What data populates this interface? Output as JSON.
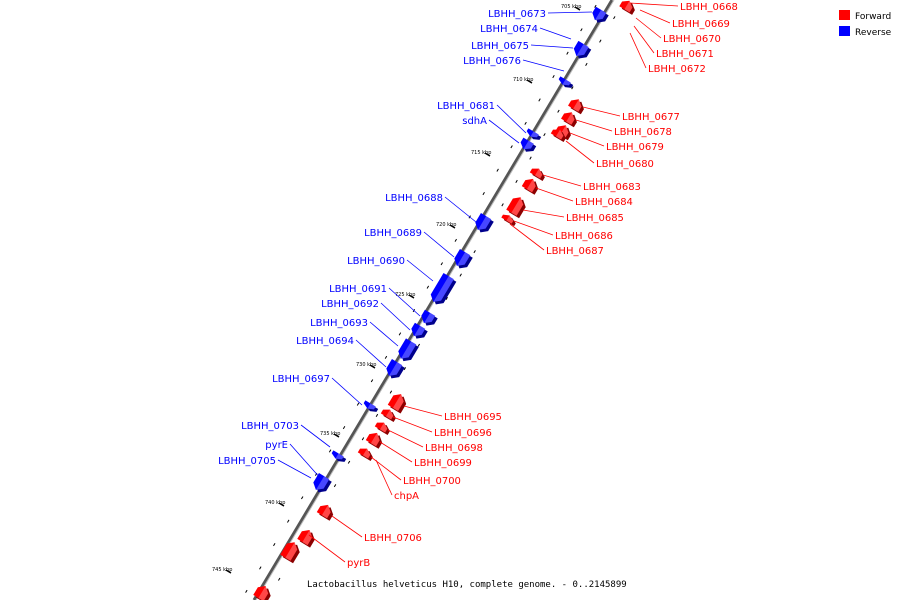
{
  "caption": "Lactobacillus helveticus H10, complete genome. - 0..2145899",
  "legend": {
    "forward": {
      "label": "Forward",
      "color": "#ff0000"
    },
    "reverse": {
      "label": "Reverse",
      "color": "#0000ff"
    }
  },
  "ticks": [
    "705 kbp",
    "710 kbp",
    "715 kbp",
    "720 kbp",
    "725 kbp",
    "730 kbp",
    "735 kbp",
    "740 kbp",
    "745 kbp"
  ],
  "genes": {
    "forward": [
      "LBHH_0668",
      "LBHH_0669",
      "LBHH_0670",
      "LBHH_0671",
      "LBHH_0672",
      "LBHH_0677",
      "LBHH_0678",
      "LBHH_0679",
      "LBHH_0680",
      "LBHH_0683",
      "LBHH_0684",
      "LBHH_0685",
      "LBHH_0686",
      "LBHH_0687",
      "LBHH_0695",
      "LBHH_0696",
      "LBHH_0698",
      "LBHH_0699",
      "LBHH_0700",
      "chpA",
      "LBHH_0706",
      "pyrB"
    ],
    "reverse": [
      "LBHH_0673",
      "LBHH_0674",
      "LBHH_0675",
      "LBHH_0676",
      "LBHH_0681",
      "sdhA",
      "LBHH_0688",
      "LBHH_0689",
      "LBHH_0690",
      "LBHH_0691",
      "LBHH_0692",
      "LBHH_0693",
      "LBHH_0694",
      "LBHH_0697",
      "LBHH_0703",
      "pyrE",
      "LBHH_0705"
    ]
  }
}
